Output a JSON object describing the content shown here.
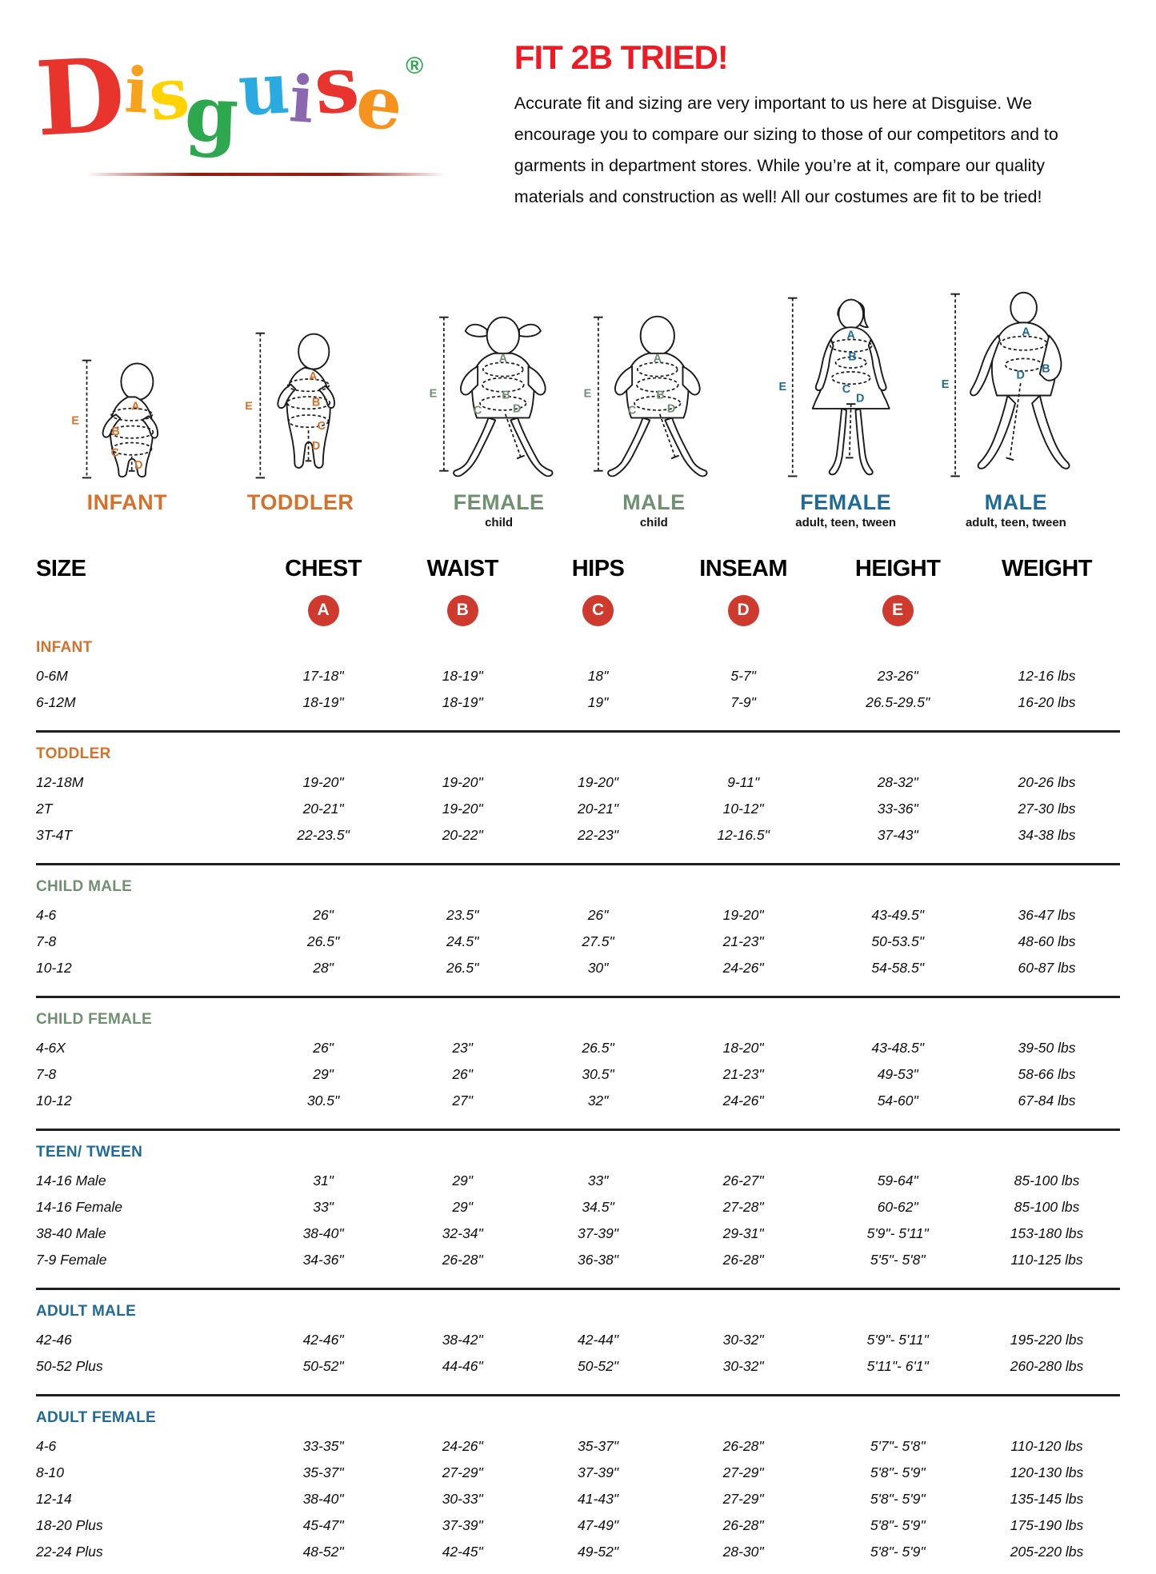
{
  "colors": {
    "orange": "#d2722c",
    "green": "#6f9071",
    "blue": "#1f6a96",
    "heading_red": "#ed1c24",
    "badge_red": "#ce3a2e"
  },
  "logo": {
    "letters": [
      {
        "ch": "D",
        "color": "#e8342c"
      },
      {
        "ch": "i",
        "color": "#f6a21d"
      },
      {
        "ch": "s",
        "color": "#ffd200"
      },
      {
        "ch": "g",
        "color": "#2ea84e"
      },
      {
        "ch": "u",
        "color": "#29abe2"
      },
      {
        "ch": "i",
        "color": "#8a67ae"
      },
      {
        "ch": "s",
        "color": "#e8342c"
      },
      {
        "ch": "e",
        "color": "#f6921e"
      }
    ],
    "registered_mark": "®",
    "registered_color": "#2ea84e"
  },
  "intro": {
    "heading": "FIT 2B TRIED!",
    "body": "Accurate fit and sizing are very important to us here at Disguise. We encourage you to compare our sizing to those of our competitors and to garments in department stores. While you’re at it, compare our quality materials and construction as well! All our costumes are fit to be tried!"
  },
  "letters": {
    "A": "A",
    "B": "B",
    "C": "C",
    "D": "D",
    "E": "E"
  },
  "figures": [
    {
      "label": "INFANT",
      "sublabel": "",
      "group": "orange"
    },
    {
      "label": "TODDLER",
      "sublabel": "",
      "group": "orange"
    },
    {
      "label": "FEMALE",
      "sublabel": "child",
      "group": "green"
    },
    {
      "label": "MALE",
      "sublabel": "child",
      "group": "green"
    },
    {
      "label": "FEMALE",
      "sublabel": "adult, teen, tween",
      "group": "blue"
    },
    {
      "label": "MALE",
      "sublabel": "adult, teen, tween",
      "group": "blue"
    }
  ],
  "table": {
    "headers": [
      "SIZE",
      "CHEST",
      "WAIST",
      "HIPS",
      "INSEAM",
      "HEIGHT",
      "WEIGHT"
    ],
    "badges": [
      "A",
      "B",
      "C",
      "D",
      "E"
    ],
    "sections": [
      {
        "title": "INFANT",
        "color": "orange",
        "rows": [
          [
            "0-6M",
            "17-18\"",
            "18-19\"",
            "18\"",
            "5-7\"",
            "23-26\"",
            "12-16 lbs"
          ],
          [
            "6-12M",
            "18-19\"",
            "18-19\"",
            "19\"",
            "7-9\"",
            "26.5-29.5\"",
            "16-20 lbs"
          ]
        ]
      },
      {
        "title": "TODDLER",
        "color": "orange",
        "rows": [
          [
            "12-18M",
            "19-20\"",
            "19-20\"",
            "19-20\"",
            "9-11\"",
            "28-32\"",
            "20-26 lbs"
          ],
          [
            "2T",
            "20-21\"",
            "19-20\"",
            "20-21\"",
            "10-12\"",
            "33-36\"",
            "27-30 lbs"
          ],
          [
            "3T-4T",
            "22-23.5\"",
            "20-22\"",
            "22-23\"",
            "12-16.5\"",
            "37-43\"",
            "34-38 lbs"
          ]
        ]
      },
      {
        "title": "CHILD MALE",
        "color": "green",
        "rows": [
          [
            "4-6",
            "26\"",
            "23.5\"",
            "26\"",
            "19-20\"",
            "43-49.5\"",
            "36-47 lbs"
          ],
          [
            "7-8",
            "26.5\"",
            "24.5\"",
            "27.5\"",
            "21-23\"",
            "50-53.5\"",
            "48-60 lbs"
          ],
          [
            "10-12",
            "28\"",
            "26.5\"",
            "30\"",
            "24-26\"",
            "54-58.5\"",
            "60-87 lbs"
          ]
        ]
      },
      {
        "title": "CHILD FEMALE",
        "color": "green",
        "rows": [
          [
            "4-6X",
            "26\"",
            "23\"",
            "26.5\"",
            "18-20\"",
            "43-48.5\"",
            "39-50 lbs"
          ],
          [
            "7-8",
            "29\"",
            "26\"",
            "30.5\"",
            "21-23\"",
            "49-53\"",
            "58-66 lbs"
          ],
          [
            "10-12",
            "30.5\"",
            "27\"",
            "32\"",
            "24-26\"",
            "54-60\"",
            "67-84 lbs"
          ]
        ]
      },
      {
        "title": "TEEN/ TWEEN",
        "color": "blue",
        "rows": [
          [
            "14-16 Male",
            "31\"",
            "29\"",
            "33\"",
            "26-27\"",
            "59-64\"",
            "85-100 lbs"
          ],
          [
            "14-16 Female",
            "33\"",
            "29\"",
            "34.5\"",
            "27-28\"",
            "60-62\"",
            "85-100 lbs"
          ],
          [
            "38-40 Male",
            "38-40\"",
            "32-34\"",
            "37-39\"",
            "29-31\"",
            "5'9\"- 5'11\"",
            "153-180 lbs"
          ],
          [
            "7-9 Female",
            "34-36\"",
            "26-28\"",
            "36-38\"",
            "26-28\"",
            "5'5\"- 5'8\"",
            "110-125 lbs"
          ]
        ]
      },
      {
        "title": "ADULT MALE",
        "color": "blue",
        "rows": [
          [
            "42-46",
            "42-46\"",
            "38-42\"",
            "42-44\"",
            "30-32\"",
            "5'9\"- 5'11\"",
            "195-220 lbs"
          ],
          [
            "50-52 Plus",
            "50-52\"",
            "44-46\"",
            "50-52\"",
            "30-32\"",
            "5'11\"- 6'1\"",
            "260-280 lbs"
          ]
        ]
      },
      {
        "title": "ADULT FEMALE",
        "color": "blue",
        "rows": [
          [
            "4-6",
            "33-35\"",
            "24-26\"",
            "35-37\"",
            "26-28\"",
            "5'7\"- 5'8\"",
            "110-120 lbs"
          ],
          [
            "8-10",
            "35-37\"",
            "27-29\"",
            "37-39\"",
            "27-29\"",
            "5'8\"- 5'9\"",
            "120-130 lbs"
          ],
          [
            "12-14",
            "38-40\"",
            "30-33\"",
            "41-43\"",
            "27-29\"",
            "5'8\"- 5'9\"",
            "135-145 lbs"
          ],
          [
            "18-20 Plus",
            "45-47\"",
            "37-39\"",
            "47-49\"",
            "26-28\"",
            "5'8\"- 5'9\"",
            "175-190 lbs"
          ],
          [
            "22-24 Plus",
            "48-52\"",
            "42-45\"",
            "49-52\"",
            "28-30\"",
            "5'8\"- 5'9\"",
            "205-220 lbs"
          ]
        ]
      }
    ]
  }
}
